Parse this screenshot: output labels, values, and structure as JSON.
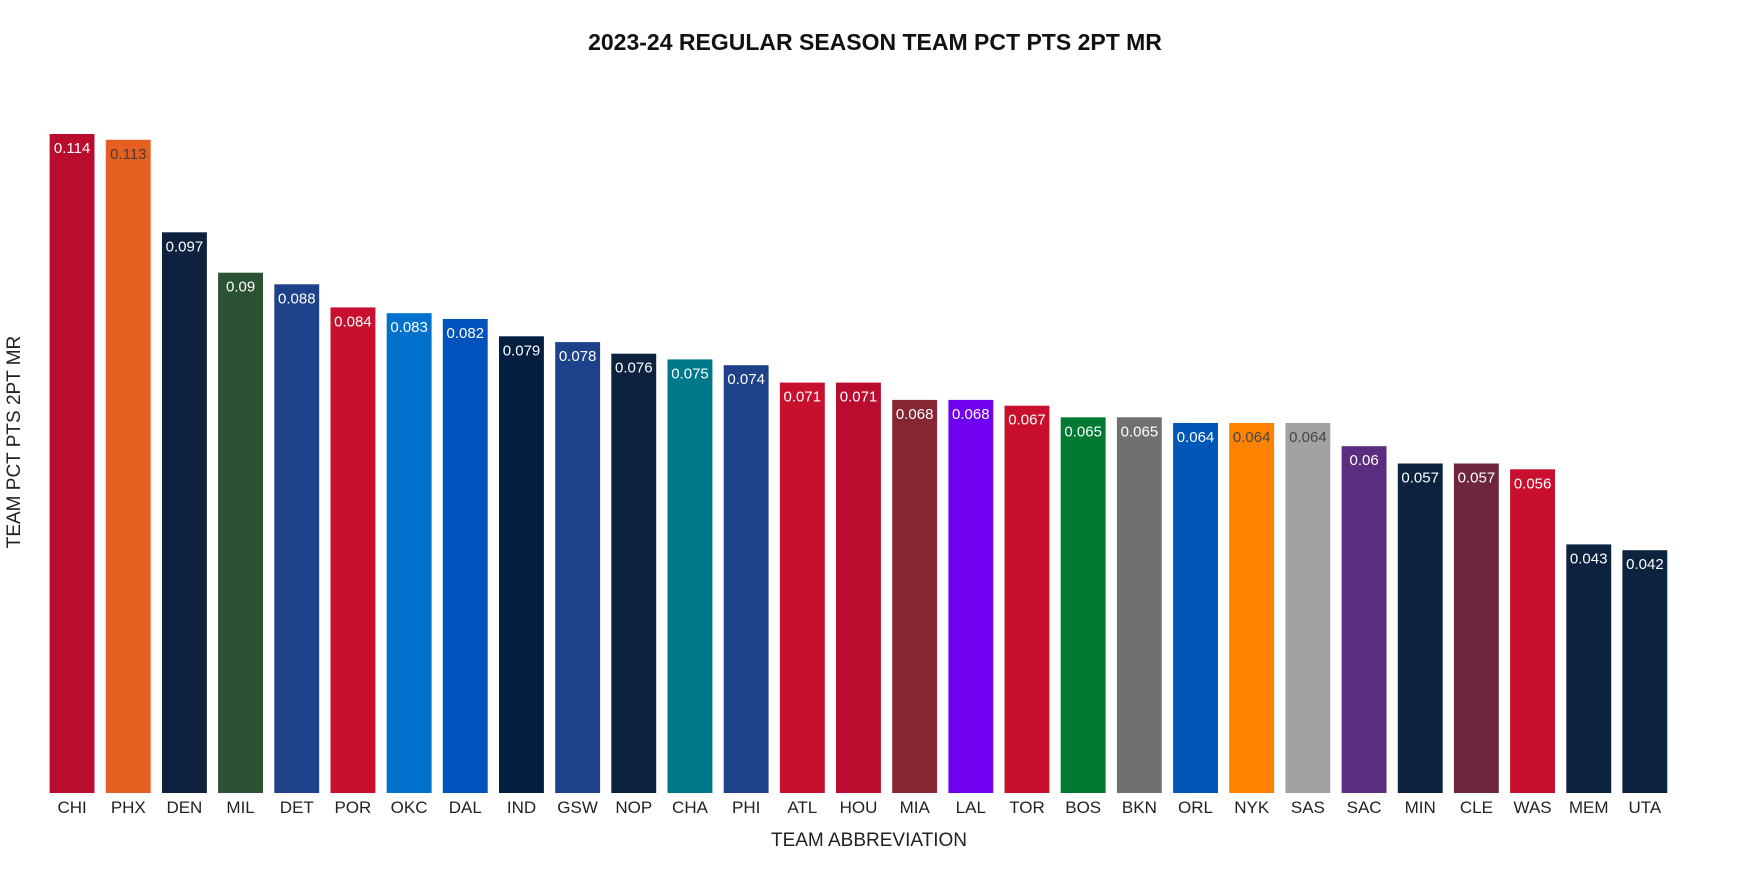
{
  "chart_data": {
    "type": "bar",
    "title": "2023-24 REGULAR SEASON TEAM PCT PTS 2PT MR",
    "xlabel": "TEAM ABBREVIATION",
    "ylabel": "TEAM PCT PTS 2PT MR",
    "ylim": [
      0,
      0.12
    ],
    "grid": false,
    "legend": "none",
    "categories": [
      "CHI",
      "PHX",
      "DEN",
      "MIL",
      "DET",
      "POR",
      "OKC",
      "DAL",
      "IND",
      "GSW",
      "NOP",
      "CHA",
      "PHI",
      "ATL",
      "HOU",
      "MIA",
      "LAL",
      "TOR",
      "BOS",
      "BKN",
      "ORL",
      "NYK",
      "SAS",
      "SAC",
      "MIN",
      "CLE",
      "WAS",
      "MEM",
      "UTA"
    ],
    "values": [
      0.114,
      0.113,
      0.097,
      0.09,
      0.088,
      0.084,
      0.083,
      0.082,
      0.079,
      0.078,
      0.076,
      0.075,
      0.074,
      0.071,
      0.071,
      0.068,
      0.068,
      0.067,
      0.065,
      0.065,
      0.064,
      0.064,
      0.064,
      0.06,
      0.057,
      0.057,
      0.056,
      0.043,
      0.042
    ],
    "value_labels": [
      "0.114",
      "0.113",
      "0.097",
      "0.09",
      "0.088",
      "0.084",
      "0.083",
      "0.082",
      "0.079",
      "0.078",
      "0.076",
      "0.075",
      "0.074",
      "0.071",
      "0.071",
      "0.068",
      "0.068",
      "0.067",
      "0.065",
      "0.065",
      "0.064",
      "0.064",
      "0.064",
      "0.06",
      "0.057",
      "0.057",
      "0.056",
      "0.043",
      "0.042"
    ],
    "colors": [
      "#BA0C2F",
      "#E56020",
      "#0E2240",
      "#2C5234",
      "#1D428A",
      "#C8102E",
      "#0072CE",
      "#0053BC",
      "#041E42",
      "#1D428A",
      "#0C2340",
      "#00788C",
      "#1D428A",
      "#C8102E",
      "#BA0C2F",
      "#862633",
      "#7000F0",
      "#C8102E",
      "#007A33",
      "#707070",
      "#0057B8",
      "#FF8200",
      "#A0A2A4",
      "#5A2D81",
      "#0C2340",
      "#6F263D",
      "#C8102E",
      "#0C2340",
      "#0C2340"
    ],
    "label_colors": [
      "#ffffff",
      "#4a3a30",
      "#ffffff",
      "#ffffff",
      "#ffffff",
      "#ffffff",
      "#ffffff",
      "#ffffff",
      "#ffffff",
      "#ffffff",
      "#ffffff",
      "#ffffff",
      "#ffffff",
      "#ffffff",
      "#ffffff",
      "#ffffff",
      "#ffffff",
      "#ffffff",
      "#ffffff",
      "#ffffff",
      "#ffffff",
      "#444444",
      "#444444",
      "#ffffff",
      "#ffffff",
      "#ffffff",
      "#ffffff",
      "#ffffff",
      "#ffffff"
    ]
  }
}
